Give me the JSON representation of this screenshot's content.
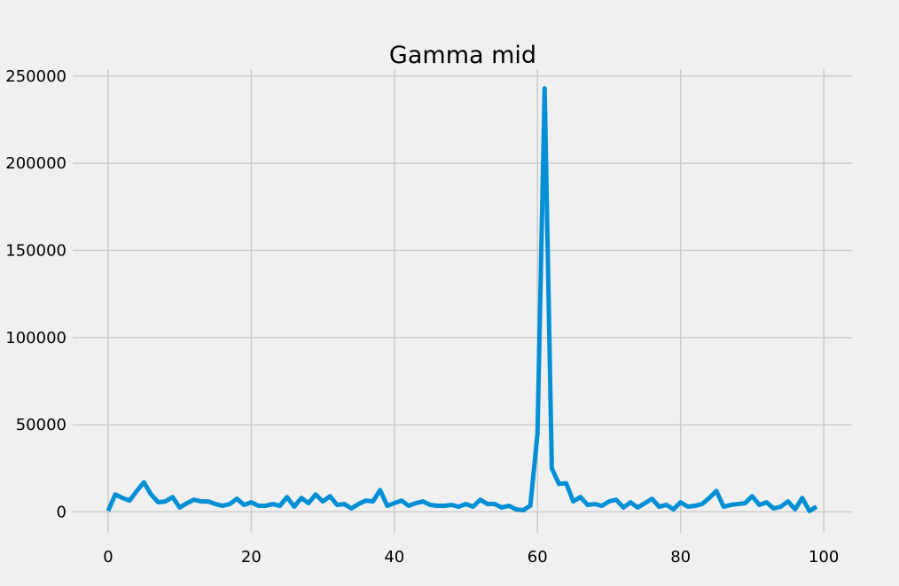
{
  "chart_data": {
    "type": "line",
    "title": "Gamma mid",
    "xlabel": "",
    "ylabel": "",
    "xlim": [
      -4.95,
      103.95
    ],
    "ylim": [
      -12000,
      254000
    ],
    "xticks": [
      0,
      20,
      40,
      60,
      80,
      100
    ],
    "xtick_labels": [
      "0",
      "20",
      "40",
      "60",
      "80",
      "100"
    ],
    "yticks": [
      0,
      50000,
      100000,
      150000,
      200000,
      250000
    ],
    "ytick_labels": [
      "0",
      "50000",
      "100000",
      "150000",
      "200000",
      "250000"
    ],
    "grid": true,
    "legend": "none",
    "series": [
      {
        "color": "#008fd5",
        "x": [
          0,
          1,
          2,
          3,
          4,
          5,
          6,
          7,
          8,
          9,
          10,
          11,
          12,
          13,
          14,
          15,
          16,
          17,
          18,
          19,
          20,
          21,
          22,
          23,
          24,
          25,
          26,
          27,
          28,
          29,
          30,
          31,
          32,
          33,
          34,
          35,
          36,
          37,
          38,
          39,
          40,
          41,
          42,
          43,
          44,
          45,
          46,
          47,
          48,
          49,
          50,
          51,
          52,
          53,
          54,
          55,
          56,
          57,
          58,
          59,
          60,
          61,
          62,
          63,
          64,
          65,
          66,
          67,
          68,
          69,
          70,
          71,
          72,
          73,
          74,
          75,
          76,
          77,
          78,
          79,
          80,
          81,
          82,
          83,
          84,
          85,
          86,
          87,
          88,
          89,
          90,
          91,
          92,
          93,
          94,
          95,
          96,
          97,
          98,
          99
        ],
        "y": [
          500,
          10000,
          8000,
          6500,
          12000,
          17000,
          10000,
          5500,
          6000,
          8500,
          2500,
          5000,
          7000,
          6000,
          6000,
          4500,
          3500,
          4500,
          7500,
          4000,
          5500,
          3500,
          3500,
          4500,
          3500,
          8500,
          3000,
          8000,
          5000,
          10000,
          6000,
          9000,
          4000,
          4500,
          2000,
          4500,
          6500,
          6000,
          12500,
          3500,
          5000,
          6500,
          3500,
          5000,
          6000,
          4000,
          3500,
          3500,
          4000,
          3000,
          4500,
          3000,
          7000,
          4500,
          4500,
          2500,
          3500,
          1500,
          1000,
          3500,
          45000,
          243000,
          25000,
          16000,
          16500,
          6000,
          8500,
          4000,
          4500,
          3500,
          6000,
          7000,
          2500,
          5500,
          2500,
          5000,
          7500,
          3000,
          4000,
          1500,
          5500,
          3000,
          3500,
          4500,
          8000,
          12000,
          3000,
          4000,
          4500,
          5000,
          9000,
          4000,
          5500,
          2000,
          3000,
          6000,
          1500,
          8000,
          500,
          3000
        ]
      }
    ]
  }
}
